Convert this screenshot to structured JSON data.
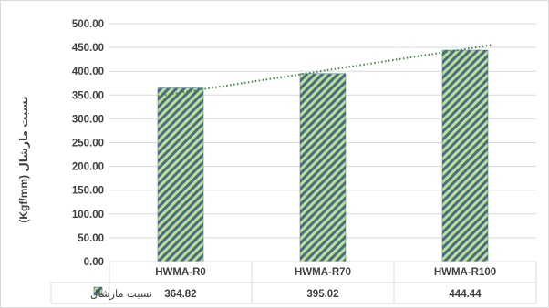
{
  "chart_data": {
    "type": "bar",
    "categories": [
      "HWMA-R0",
      "HWMA-R70",
      "HWMA-R100"
    ],
    "series": [
      {
        "name": "نسبت مارشال",
        "values": [
          364.82,
          395.02,
          444.44
        ]
      }
    ],
    "value_labels": [
      "364.82",
      "395.02",
      "444.44"
    ],
    "ylim": [
      0,
      500
    ],
    "y_ticks": [
      "0.00",
      "50.00",
      "100.00",
      "150.00",
      "200.00",
      "250.00",
      "300.00",
      "350.00",
      "400.00",
      "450.00",
      "500.00"
    ],
    "ylabel": "نسبت مارشال (Kgf/mm)",
    "grid": true,
    "trendline": "linear-dotted",
    "data_table": true,
    "colors": {
      "bar_light": "#c8dd8a",
      "bar_dark": "#3f6f8e",
      "trend": "#3a8a3a",
      "grid": "#d9d9d9"
    }
  }
}
